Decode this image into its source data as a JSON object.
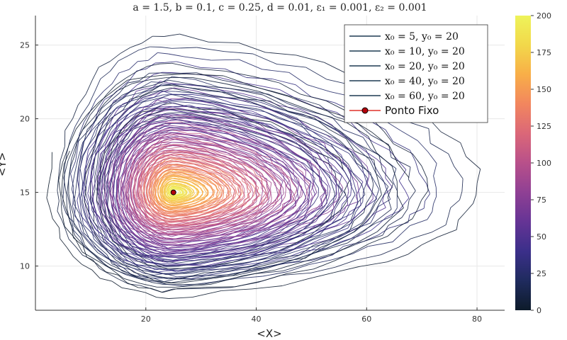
{
  "chart_data": {
    "type": "line",
    "title": "a = 1.5, b = 0.1, c = 0.25, d = 0.01, ε₁ = 0.001, ε₂ = 0.001",
    "xlabel": "<X>",
    "ylabel": "<Y>",
    "xlim": [
      0,
      85
    ],
    "ylim": [
      7,
      27
    ],
    "xticks": [
      20,
      40,
      60,
      80
    ],
    "yticks": [
      10,
      15,
      20,
      25
    ],
    "grid": true,
    "legend_position": "top-right",
    "series": [
      {
        "name": "x₀ = 5, y₀ = 20",
        "color": "#1d3a52",
        "start": [
          5,
          20
        ],
        "xrange": [
          2.5,
          82
        ],
        "yrange": [
          7.8,
          26.2
        ]
      },
      {
        "name": "x₀ = 10, y₀ = 20",
        "color": "#1d3a52",
        "start": [
          10,
          20
        ],
        "xrange": [
          5,
          72
        ],
        "yrange": [
          8.2,
          24.0
        ]
      },
      {
        "name": "x₀ = 20, y₀ = 20",
        "color": "#1d3a52",
        "start": [
          20,
          20
        ],
        "xrange": [
          9,
          64
        ],
        "yrange": [
          8.8,
          22.6
        ]
      },
      {
        "name": "x₀ = 40, y₀ = 20",
        "color": "#1d3a52",
        "start": [
          40,
          20
        ],
        "xrange": [
          11,
          58
        ],
        "yrange": [
          9.6,
          21.0
        ]
      },
      {
        "name": "x₀ = 60, y₀ = 20",
        "color": "#1d3a52",
        "start": [
          60,
          20
        ],
        "xrange": [
          4,
          68
        ],
        "yrange": [
          8.4,
          23.2
        ]
      },
      {
        "name": "Ponto Fixo",
        "color": "#e0302a",
        "type": "scatter",
        "x": [
          25
        ],
        "y": [
          15
        ]
      }
    ],
    "fixed_point": {
      "x": 25,
      "y": 15
    },
    "colorbar": {
      "min": 0,
      "max": 200,
      "ticks": [
        0,
        25,
        50,
        75,
        100,
        125,
        150,
        175,
        200
      ],
      "colormap": [
        "#0d1b2a",
        "#1f2b5e",
        "#3b2f8a",
        "#653495",
        "#8f4094",
        "#b8508a",
        "#db6778",
        "#f2865e",
        "#f8ae48",
        "#f2d84a",
        "#eef35a"
      ]
    }
  }
}
